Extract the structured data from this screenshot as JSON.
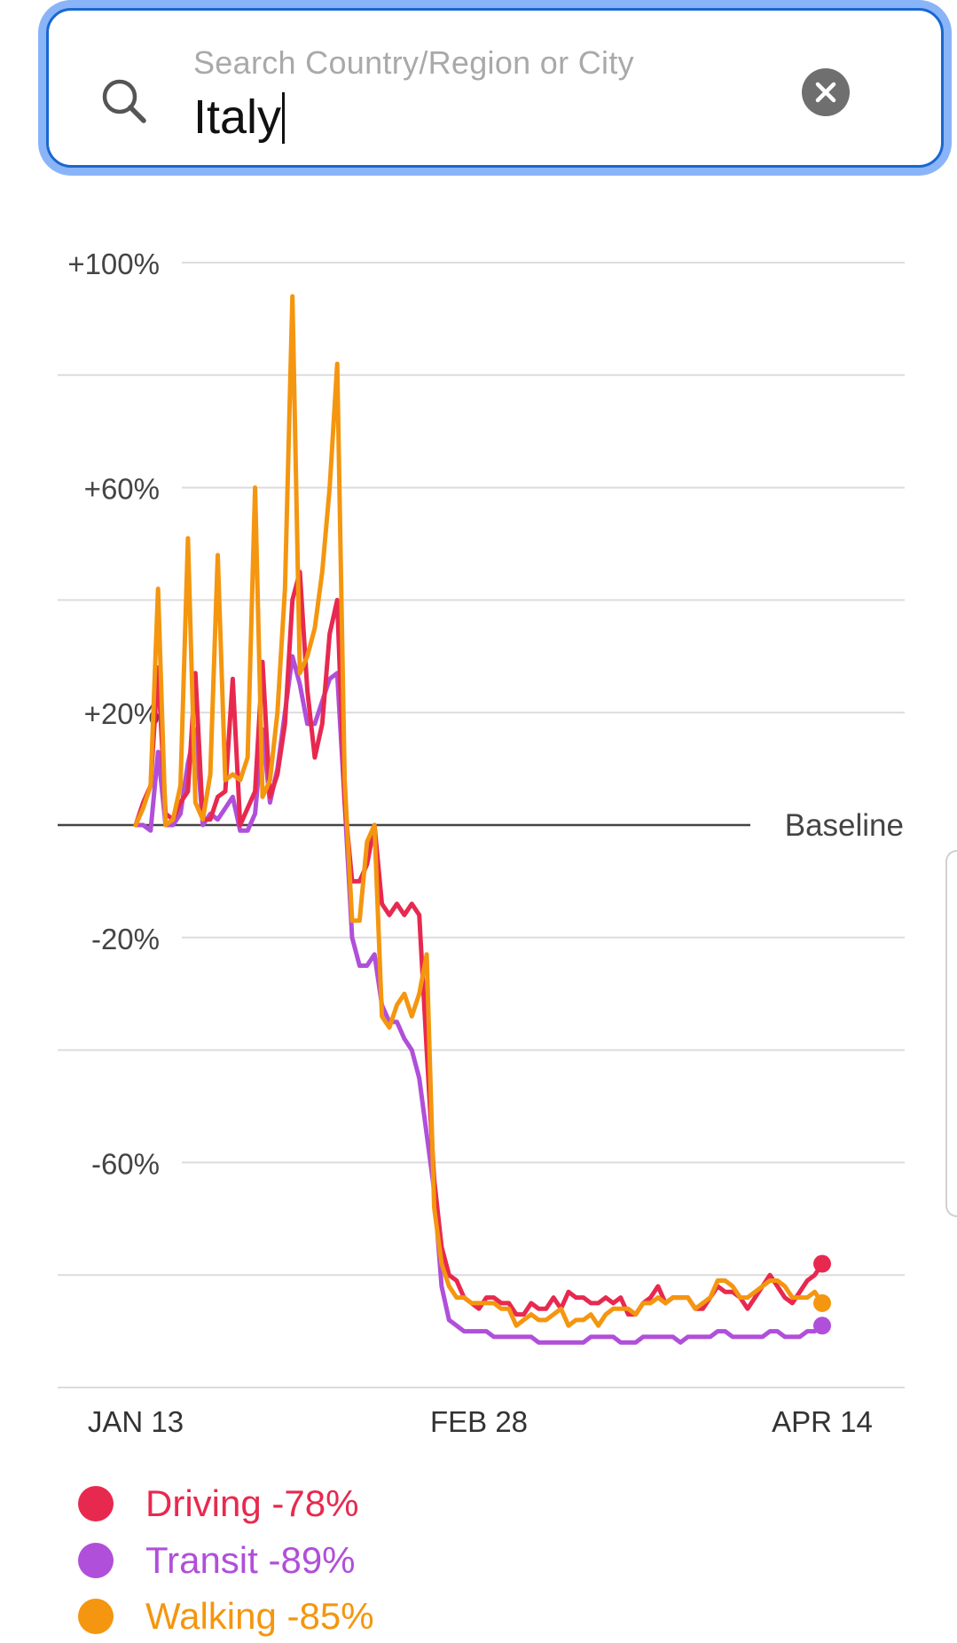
{
  "search": {
    "label": "Search Country/Region or City",
    "value": "Italy",
    "icon": "search-icon",
    "clear_icon": "close-icon"
  },
  "chart_data": {
    "type": "line",
    "ylim": [
      -100,
      100
    ],
    "y_ticks": [
      {
        "value": 100,
        "label": "+100%"
      },
      {
        "value": 60,
        "label": "+60%"
      },
      {
        "value": 20,
        "label": "+20%"
      },
      {
        "value": -20,
        "label": "-20%"
      },
      {
        "value": -60,
        "label": "-60%"
      }
    ],
    "gridlines": [
      100,
      80,
      60,
      40,
      20,
      -20,
      -40,
      -60,
      -80,
      -100
    ],
    "baseline_label": "Baseline",
    "x_start": "2020-01-13",
    "x_end": "2020-04-14",
    "x_ticks": [
      {
        "date": "2020-01-13",
        "label": "JAN 13"
      },
      {
        "date": "2020-02-28",
        "label": "FEB 28"
      },
      {
        "date": "2020-04-14",
        "label": "APR 14"
      }
    ],
    "series": [
      {
        "name": "Driving",
        "color": "#e8294f",
        "values": [
          0,
          4,
          7,
          28,
          2,
          1,
          4,
          6,
          27,
          1,
          1,
          5,
          6,
          26,
          0,
          3,
          6,
          29,
          5,
          9,
          18,
          40,
          45,
          24,
          12,
          18,
          34,
          40,
          4,
          -10,
          -10,
          -7,
          0,
          -14,
          -16,
          -14,
          -16,
          -14,
          -16,
          -40,
          -63,
          -75,
          -80,
          -81,
          -84,
          -85,
          -86,
          -84,
          -84,
          -85,
          -85,
          -87,
          -87,
          -85,
          -86,
          -86,
          -84,
          -86,
          -83,
          -84,
          -84,
          -85,
          -85,
          -84,
          -85,
          -84,
          -87,
          -87,
          -85,
          -84,
          -82,
          -85,
          -84,
          -84,
          -84,
          -86,
          -86,
          -84,
          -82,
          -83,
          -83,
          -84,
          -86,
          -84,
          -82,
          -80,
          -82,
          -84,
          -85,
          -83,
          -81,
          -80,
          -78
        ]
      },
      {
        "name": "Transit",
        "color": "#b04fd9",
        "values": [
          0,
          0,
          -1,
          13,
          0,
          0,
          2,
          11,
          17,
          0,
          2,
          1,
          3,
          5,
          -1,
          -1,
          2,
          17,
          4,
          10,
          20,
          30,
          25,
          18,
          18,
          22,
          26,
          27,
          4,
          -20,
          -25,
          -25,
          -23,
          -32,
          -35,
          -35,
          -38,
          -40,
          -45,
          -55,
          -65,
          -82,
          -88,
          -89,
          -90,
          -90,
          -90,
          -90,
          -91,
          -91,
          -91,
          -91,
          -91,
          -91,
          -92,
          -92,
          -92,
          -92,
          -92,
          -92,
          -92,
          -91,
          -91,
          -91,
          -91,
          -92,
          -92,
          -92,
          -91,
          -91,
          -91,
          -91,
          -91,
          -92,
          -91,
          -91,
          -91,
          -91,
          -90,
          -90,
          -91,
          -91,
          -91,
          -91,
          -91,
          -90,
          -90,
          -91,
          -91,
          -91,
          -90,
          -90,
          -89
        ]
      },
      {
        "name": "Walking",
        "color": "#f4960f",
        "values": [
          0,
          3,
          7,
          42,
          0,
          1,
          7,
          51,
          4,
          1,
          9,
          48,
          8,
          9,
          8,
          12,
          60,
          5,
          8,
          20,
          42,
          94,
          27,
          30,
          35,
          45,
          60,
          82,
          8,
          -17,
          -17,
          -3,
          0,
          -34,
          -36,
          -32,
          -30,
          -34,
          -30,
          -23,
          -68,
          -78,
          -82,
          -84,
          -84,
          -85,
          -85,
          -85,
          -85,
          -86,
          -86,
          -89,
          -88,
          -87,
          -88,
          -88,
          -87,
          -86,
          -89,
          -88,
          -88,
          -87,
          -89,
          -87,
          -86,
          -86,
          -86,
          -87,
          -85,
          -85,
          -84,
          -85,
          -84,
          -84,
          -84,
          -86,
          -85,
          -84,
          -81,
          -81,
          -82,
          -84,
          -84,
          -83,
          -82,
          -81,
          -81,
          -82,
          -84,
          -84,
          -84,
          -83,
          -85
        ]
      }
    ],
    "legend": [
      {
        "name": "Driving",
        "label": "Driving -78%",
        "color": "#e8294f"
      },
      {
        "name": "Transit",
        "label": "Transit -89%",
        "color": "#b04fd9"
      },
      {
        "name": "Walking",
        "label": "Walking -85%",
        "color": "#f4960f"
      }
    ],
    "legend_placement": "bottom-left",
    "grid": true
  }
}
